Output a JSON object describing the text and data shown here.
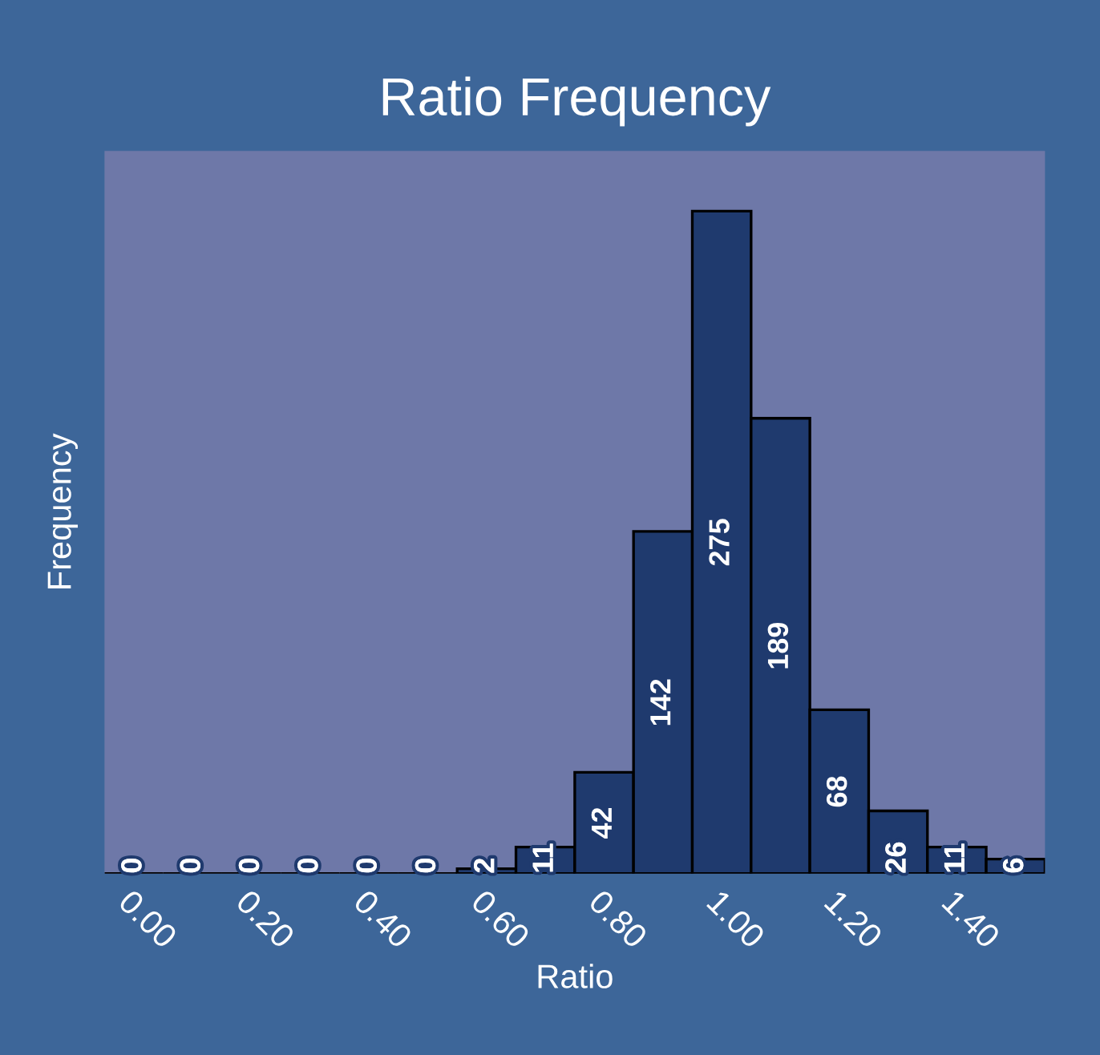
{
  "chart_data": {
    "type": "bar",
    "title": "Ratio Frequency",
    "xlabel": "Ratio",
    "ylabel": "Frequency",
    "categories": [
      "0.00",
      null,
      "0.20",
      null,
      "0.40",
      null,
      "0.60",
      null,
      "0.80",
      null,
      "1.00",
      null,
      "1.20",
      null,
      "1.40",
      null
    ],
    "values": [
      0,
      0,
      0,
      0,
      0,
      0,
      2,
      11,
      42,
      142,
      275,
      189,
      68,
      26,
      11,
      6
    ],
    "color": "#1f3a6e",
    "ylim": [
      0,
      300
    ],
    "data_labels": true,
    "grid": false,
    "legend": false
  }
}
